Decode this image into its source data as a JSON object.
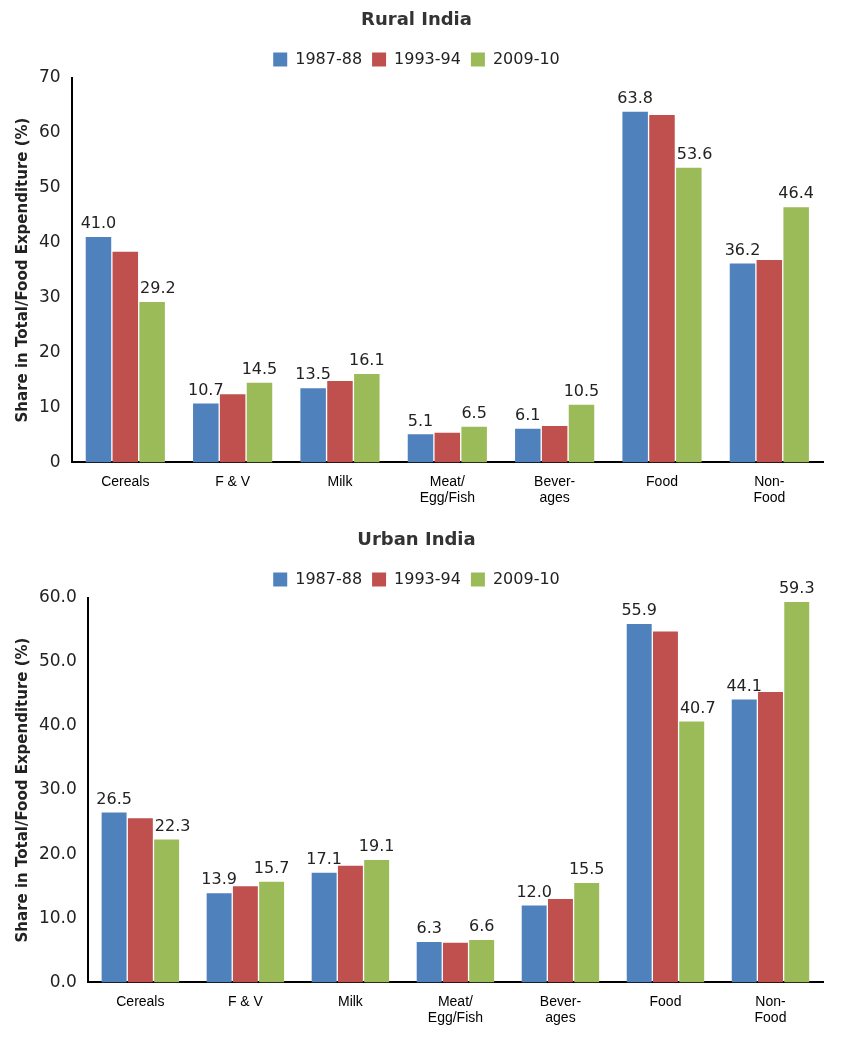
{
  "chart_data": [
    {
      "type": "bar",
      "title": "Rural India",
      "ylabel": "Share in Total/Food Expenditure (%)",
      "categories": [
        "Cereals",
        "F & V",
        "Milk",
        "Meat/\nEgg/Fish",
        "Bever-\nages",
        "Food",
        "Non-\nFood"
      ],
      "series": [
        {
          "name": "1987-88",
          "color": "#4f81bd",
          "values": [
            41.0,
            10.7,
            13.5,
            5.1,
            6.1,
            63.8,
            36.2
          ],
          "value_labels": [
            "41.0",
            "10.7",
            "13.5",
            "5.1",
            "6.1",
            "63.8",
            "36.2"
          ]
        },
        {
          "name": "1993-94",
          "color": "#c0504d",
          "values": [
            38.3,
            12.4,
            14.8,
            5.4,
            6.6,
            63.2,
            36.8
          ]
        },
        {
          "name": "2009-10",
          "color": "#9bbb59",
          "values": [
            29.2,
            14.5,
            16.1,
            6.5,
            10.5,
            53.6,
            46.4
          ],
          "value_labels": [
            "29.2",
            "14.5",
            "16.1",
            "6.5",
            "10.5",
            "53.6",
            "46.4"
          ]
        }
      ],
      "ylim": [
        0,
        70
      ],
      "yticks": [
        0,
        10,
        20,
        30,
        40,
        50,
        60,
        70
      ],
      "grid": false,
      "legend": "top"
    },
    {
      "type": "bar",
      "title": "Urban India",
      "ylabel": "Share in Total/Food Expenditure (%)",
      "categories": [
        "Cereals",
        "F & V",
        "Milk",
        "Meat/\nEgg/Fish",
        "Bever-\nages",
        "Food",
        "Non-\nFood"
      ],
      "series": [
        {
          "name": "1987-88",
          "color": "#4f81bd",
          "values": [
            26.5,
            13.9,
            17.1,
            6.3,
            12.0,
            55.9,
            44.1
          ],
          "value_labels": [
            "26.5",
            "13.9",
            "17.1",
            "6.3",
            "12.0",
            "55.9",
            "44.1"
          ]
        },
        {
          "name": "1993-94",
          "color": "#c0504d",
          "values": [
            25.6,
            15.0,
            18.2,
            6.2,
            13.0,
            54.7,
            45.3
          ]
        },
        {
          "name": "2009-10",
          "color": "#9bbb59",
          "values": [
            22.3,
            15.7,
            19.1,
            6.6,
            15.5,
            40.7,
            59.3
          ],
          "value_labels": [
            "22.3",
            "15.7",
            "19.1",
            "6.6",
            "15.5",
            "40.7",
            "59.3"
          ]
        }
      ],
      "ylim": [
        0,
        60
      ],
      "yticks": [
        {
          "value": 0,
          "label": "0.0"
        },
        {
          "value": 10,
          "label": "10.0"
        },
        {
          "value": 20,
          "label": "20.0"
        },
        {
          "value": 30,
          "label": "30.0"
        },
        {
          "value": 40,
          "label": "40.0"
        },
        {
          "value": 50,
          "label": "50.0"
        },
        {
          "value": 60,
          "label": "60.0"
        }
      ],
      "grid": false,
      "legend": "top"
    }
  ]
}
